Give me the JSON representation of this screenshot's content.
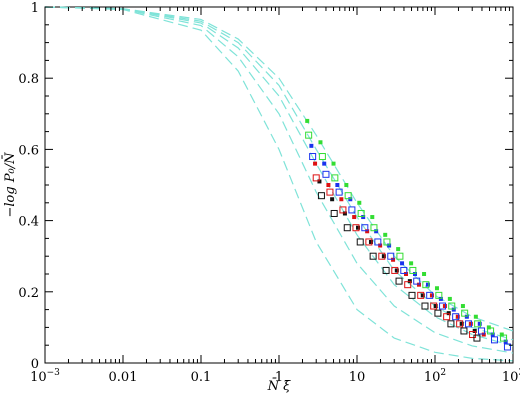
{
  "chart_data": {
    "type": "scatter",
    "title": "",
    "xlabel": "N̄ ξ̄",
    "ylabel": "−log P₀/N̄",
    "xscale": "log",
    "xlim": [
      0.001,
      1000
    ],
    "ylim": [
      0,
      1
    ],
    "grid": false,
    "legend": "none",
    "x_ticks": [
      {
        "value": 0.001,
        "base": "10",
        "exp": "−3"
      },
      {
        "value": 0.01,
        "label": "0.01"
      },
      {
        "value": 0.1,
        "label": "0.1"
      },
      {
        "value": 1,
        "label": "1"
      },
      {
        "value": 10,
        "label": "10"
      },
      {
        "value": 100,
        "base": "10",
        "exp": "2"
      },
      {
        "value": 1000,
        "base": "10",
        "exp": "3"
      }
    ],
    "y_ticks": [
      {
        "value": 0,
        "label": "0"
      },
      {
        "value": 0.2,
        "label": "0.2"
      },
      {
        "value": 0.4,
        "label": "0.4"
      },
      {
        "value": 0.6,
        "label": "0.6"
      },
      {
        "value": 0.8,
        "label": "0.8"
      },
      {
        "value": 1,
        "label": "1"
      }
    ],
    "curves": [
      {
        "color": "#7fe3d8",
        "points": [
          [
            0.001,
            1.0
          ],
          [
            0.01,
            0.995
          ],
          [
            0.1,
            0.965
          ],
          [
            0.3,
            0.91
          ],
          [
            1,
            0.8
          ],
          [
            3,
            0.64
          ],
          [
            10,
            0.45
          ],
          [
            30,
            0.3
          ],
          [
            100,
            0.19
          ],
          [
            300,
            0.13
          ],
          [
            1000,
            0.09
          ]
        ]
      },
      {
        "color": "#7fe3d8",
        "points": [
          [
            0.001,
            1.0
          ],
          [
            0.01,
            0.995
          ],
          [
            0.1,
            0.96
          ],
          [
            0.3,
            0.9
          ],
          [
            1,
            0.78
          ],
          [
            3,
            0.6
          ],
          [
            10,
            0.41
          ],
          [
            30,
            0.26
          ],
          [
            100,
            0.16
          ],
          [
            300,
            0.1
          ],
          [
            1000,
            0.065
          ]
        ]
      },
      {
        "color": "#7fe3d8",
        "points": [
          [
            0.001,
            1.0
          ],
          [
            0.01,
            0.995
          ],
          [
            0.1,
            0.955
          ],
          [
            0.3,
            0.885
          ],
          [
            1,
            0.75
          ],
          [
            3,
            0.56
          ],
          [
            10,
            0.36
          ],
          [
            30,
            0.22
          ],
          [
            100,
            0.13
          ],
          [
            300,
            0.08
          ],
          [
            1000,
            0.048
          ]
        ]
      },
      {
        "color": "#7fe3d8",
        "points": [
          [
            0.001,
            1.0
          ],
          [
            0.01,
            0.994
          ],
          [
            0.1,
            0.948
          ],
          [
            0.3,
            0.86
          ],
          [
            1,
            0.7
          ],
          [
            3,
            0.48
          ],
          [
            10,
            0.28
          ],
          [
            30,
            0.16
          ],
          [
            100,
            0.085
          ],
          [
            300,
            0.048
          ],
          [
            1000,
            0.028
          ]
        ]
      },
      {
        "color": "#7fe3d8",
        "points": [
          [
            0.001,
            1.0
          ],
          [
            0.01,
            0.993
          ],
          [
            0.1,
            0.935
          ],
          [
            0.3,
            0.82
          ],
          [
            1,
            0.6
          ],
          [
            3,
            0.34
          ],
          [
            10,
            0.15
          ],
          [
            30,
            0.07
          ],
          [
            100,
            0.03
          ],
          [
            300,
            0.013
          ],
          [
            1000,
            0.006
          ]
        ]
      }
    ],
    "series": [
      {
        "marker": "filled-square",
        "color": "#33dd33",
        "x": [
          2.3,
          3.4,
          5.0,
          7.3,
          10.7,
          15.7,
          23,
          33.7,
          49.4,
          72.4,
          106,
          155,
          228,
          334,
          490,
          718
        ],
        "y": [
          0.68,
          0.62,
          0.56,
          0.5,
          0.45,
          0.41,
          0.36,
          0.32,
          0.28,
          0.25,
          0.21,
          0.18,
          0.16,
          0.13,
          0.1,
          0.08
        ]
      },
      {
        "marker": "filled-square",
        "color": "#1a33ee",
        "x": [
          2.6,
          3.8,
          5.6,
          8.2,
          12.0,
          17.6,
          25.8,
          37.8,
          55.4,
          81.2,
          119,
          174,
          256,
          375,
          550,
          806
        ],
        "y": [
          0.61,
          0.56,
          0.5,
          0.46,
          0.41,
          0.37,
          0.33,
          0.28,
          0.25,
          0.22,
          0.18,
          0.15,
          0.13,
          0.11,
          0.08,
          0.06
        ]
      },
      {
        "marker": "filled-square",
        "color": "#dd1111",
        "x": [
          2.9,
          4.3,
          6.3,
          9.2,
          13.5,
          19.8,
          29,
          42.5,
          62.3,
          91.4,
          134,
          196,
          288,
          422
        ],
        "y": [
          0.56,
          0.5,
          0.46,
          0.41,
          0.37,
          0.33,
          0.29,
          0.25,
          0.22,
          0.19,
          0.16,
          0.13,
          0.11,
          0.08
        ]
      },
      {
        "marker": "filled-square",
        "color": "#111111",
        "x": [
          3.3,
          4.8,
          7.0,
          10.3,
          15.1,
          22.1,
          32.4,
          47.6,
          69.7,
          102,
          150,
          220,
          323
        ],
        "y": [
          0.51,
          0.46,
          0.42,
          0.38,
          0.34,
          0.3,
          0.26,
          0.23,
          0.19,
          0.16,
          0.14,
          0.11,
          0.09
        ]
      },
      {
        "marker": "open-square",
        "color": "#33dd33",
        "x": [
          2.4,
          3.6,
          5.2,
          7.7,
          11.3,
          16.5,
          24.2,
          35.5,
          52,
          76.3,
          112,
          164,
          240,
          352,
          516,
          757
        ],
        "y": [
          0.64,
          0.58,
          0.52,
          0.47,
          0.42,
          0.38,
          0.34,
          0.3,
          0.26,
          0.22,
          0.19,
          0.16,
          0.14,
          0.11,
          0.09,
          0.07
        ]
      },
      {
        "marker": "open-square",
        "color": "#1a33ee",
        "x": [
          2.7,
          4.0,
          5.9,
          8.6,
          12.6,
          18.5,
          27.1,
          39.8,
          58.3,
          85.5,
          125,
          184,
          269,
          395,
          579,
          849
        ],
        "y": [
          0.58,
          0.53,
          0.48,
          0.43,
          0.38,
          0.34,
          0.3,
          0.26,
          0.23,
          0.19,
          0.16,
          0.13,
          0.11,
          0.09,
          0.065,
          0.045
        ]
      },
      {
        "marker": "open-square",
        "color": "#dd1111",
        "x": [
          3.0,
          4.5,
          6.6,
          9.7,
          14.2,
          20.8,
          30.5,
          44.7,
          65.6,
          96.2,
          141,
          207,
          303
        ],
        "y": [
          0.52,
          0.48,
          0.43,
          0.38,
          0.34,
          0.3,
          0.26,
          0.22,
          0.19,
          0.16,
          0.13,
          0.11,
          0.08
        ]
      },
      {
        "marker": "open-square",
        "color": "#111111",
        "x": [
          3.5,
          5.1,
          7.5,
          11.0,
          16.1,
          23.6,
          34.6,
          50.7,
          74.4,
          109,
          160,
          235,
          345
        ],
        "y": [
          0.47,
          0.42,
          0.38,
          0.34,
          0.3,
          0.26,
          0.23,
          0.19,
          0.16,
          0.14,
          0.11,
          0.09,
          0.07
        ]
      }
    ]
  }
}
